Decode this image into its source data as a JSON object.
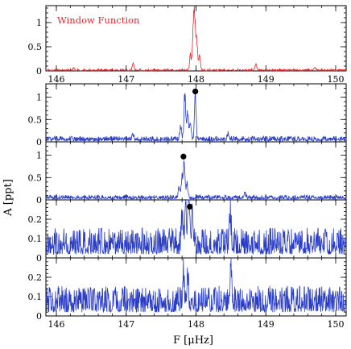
{
  "chart_data": {
    "type": "line",
    "xlabel": "F [μHz]",
    "ylabel": "A [ppt]",
    "xlim": [
      145.85,
      150.15
    ],
    "x_ticks": [
      146,
      147,
      148,
      149,
      150
    ],
    "grid": false,
    "panels": [
      {
        "annotation": "Window Function",
        "color": "#e8262b",
        "ylim": [
          0,
          1.35
        ],
        "y_ticks": [
          0,
          0.5,
          1
        ],
        "markers": [],
        "peaks": [
          {
            "f": 147.98,
            "a": 1.0
          },
          {
            "f": 147.96,
            "a": 0.78
          },
          {
            "f": 148.01,
            "a": 0.6
          },
          {
            "f": 147.92,
            "a": 0.32
          },
          {
            "f": 148.05,
            "a": 0.28
          },
          {
            "f": 147.1,
            "a": 0.14
          },
          {
            "f": 148.86,
            "a": 0.13
          },
          {
            "f": 146.25,
            "a": 0.05
          },
          {
            "f": 149.7,
            "a": 0.05
          }
        ],
        "noise": 0.02,
        "baseline": 0.0
      },
      {
        "annotation": "",
        "color": "#2a3dc7",
        "ylim": [
          0,
          1.3
        ],
        "y_ticks": [
          0,
          0.5,
          1
        ],
        "markers": [
          {
            "f": 147.99,
            "a": 1.13
          }
        ],
        "peaks": [
          {
            "f": 147.84,
            "a": 1.0
          },
          {
            "f": 147.99,
            "a": 0.97
          },
          {
            "f": 147.88,
            "a": 0.55
          },
          {
            "f": 147.92,
            "a": 0.38
          },
          {
            "f": 147.78,
            "a": 0.3
          },
          {
            "f": 148.46,
            "a": 0.14
          },
          {
            "f": 147.1,
            "a": 0.1
          }
        ],
        "noise": 0.06,
        "baseline": 0.02
      },
      {
        "annotation": "",
        "color": "#2a3dc7",
        "ylim": [
          0,
          1.3
        ],
        "y_ticks": [
          0,
          0.5,
          1
        ],
        "markers": [
          {
            "f": 147.82,
            "a": 0.97
          }
        ],
        "peaks": [
          {
            "f": 147.83,
            "a": 0.72
          },
          {
            "f": 147.8,
            "a": 0.45
          },
          {
            "f": 147.87,
            "a": 0.3
          },
          {
            "f": 147.76,
            "a": 0.22
          },
          {
            "f": 148.7,
            "a": 0.08
          }
        ],
        "noise": 0.05,
        "baseline": 0.02
      },
      {
        "annotation": "",
        "color": "#2a3dc7",
        "ylim": [
          0,
          0.3
        ],
        "y_ticks": [
          0,
          0.1,
          0.2
        ],
        "markers": [
          {
            "f": 147.91,
            "a": 0.265
          }
        ],
        "peaks": [
          {
            "f": 147.9,
            "a": 0.245
          },
          {
            "f": 147.85,
            "a": 0.18
          },
          {
            "f": 147.95,
            "a": 0.15
          },
          {
            "f": 148.49,
            "a": 0.17
          },
          {
            "f": 147.8,
            "a": 0.12
          }
        ],
        "noise": 0.075,
        "baseline": 0.02
      },
      {
        "annotation": "",
        "color": "#2a3dc7",
        "ylim": [
          0,
          0.3
        ],
        "y_ticks": [
          0,
          0.1,
          0.2
        ],
        "markers": [],
        "peaks": [
          {
            "f": 148.5,
            "a": 0.19
          },
          {
            "f": 147.82,
            "a": 0.15
          },
          {
            "f": 147.88,
            "a": 0.14
          }
        ],
        "noise": 0.075,
        "baseline": 0.02
      }
    ]
  }
}
